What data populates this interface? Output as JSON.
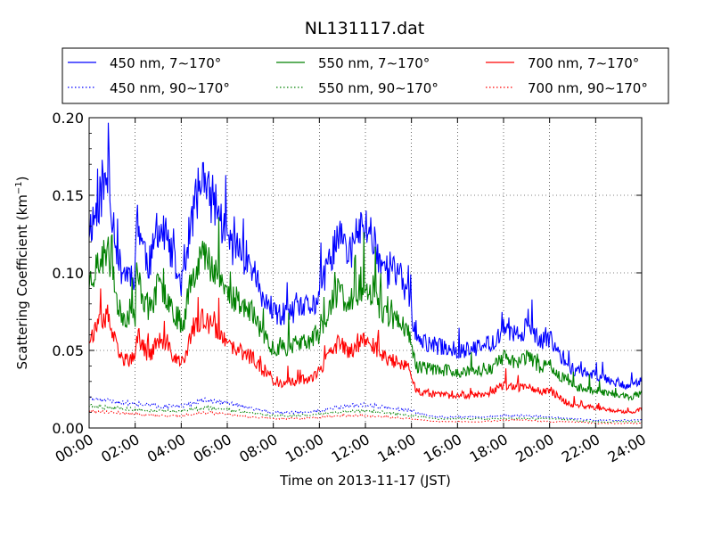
{
  "chart_data": {
    "type": "line",
    "title": "NL131117.dat",
    "xlabel": "Time on 2013-11-17 (JST)",
    "ylabel": "Scattering Coefficient (km",
    "ylabel_sup": "−1",
    "ylabel_end": ")",
    "xlim_hours": [
      0,
      24
    ],
    "ylim": [
      0,
      0.2
    ],
    "grid": true,
    "grid_style": "dotted",
    "legend_position": "top, above plot, 3 columns",
    "x_ticks": [
      "00:00",
      "02:00",
      "04:00",
      "06:00",
      "08:00",
      "10:00",
      "12:00",
      "14:00",
      "16:00",
      "18:00",
      "20:00",
      "22:00",
      "24:00"
    ],
    "y_ticks": [
      "0.00",
      "0.05",
      "0.10",
      "0.15",
      "0.20"
    ],
    "x_tick_hours": [
      0,
      2,
      4,
      6,
      8,
      10,
      12,
      14,
      16,
      18,
      20,
      22,
      24
    ],
    "y_tick_values": [
      0,
      0.05,
      0.1,
      0.15,
      0.2
    ],
    "series": [
      {
        "name": "450 nm, 7∼170°",
        "color": "#0000ff",
        "style": "solid",
        "noise": 0.22,
        "seed": 11,
        "x": [
          0,
          0.2,
          0.5,
          0.8,
          1.0,
          1.3,
          1.6,
          1.8,
          2.0,
          2.05,
          2.3,
          2.6,
          2.8,
          3.0,
          3.2,
          3.5,
          3.8,
          4.0,
          4.1,
          4.3,
          4.6,
          4.9,
          5.2,
          5.5,
          5.8,
          6.1,
          6.4,
          6.8,
          7.2,
          7.5,
          7.8,
          8.0,
          8.5,
          9.0,
          9.5,
          9.8,
          10.0,
          10.2,
          10.5,
          10.8,
          11.0,
          11.3,
          11.6,
          12.0,
          12.3,
          12.6,
          13.0,
          13.3,
          13.6,
          13.9,
          14.0,
          14.2,
          14.5,
          15.0,
          15.5,
          16.0,
          16.5,
          17.0,
          17.5,
          17.8,
          18.0,
          18.3,
          18.6,
          19.0,
          19.3,
          19.6,
          20.0,
          20.3,
          20.6,
          20.8,
          21.0,
          21.5,
          22.0,
          22.5,
          23.0,
          23.5,
          24.0
        ],
        "y": [
          0.13,
          0.135,
          0.15,
          0.16,
          0.14,
          0.105,
          0.1,
          0.1,
          0.1,
          0.14,
          0.12,
          0.105,
          0.115,
          0.13,
          0.125,
          0.115,
          0.1,
          0.095,
          0.095,
          0.12,
          0.145,
          0.16,
          0.15,
          0.145,
          0.13,
          0.12,
          0.115,
          0.11,
          0.1,
          0.085,
          0.075,
          0.073,
          0.073,
          0.075,
          0.078,
          0.08,
          0.085,
          0.095,
          0.11,
          0.125,
          0.12,
          0.11,
          0.125,
          0.13,
          0.125,
          0.11,
          0.1,
          0.1,
          0.095,
          0.085,
          0.075,
          0.057,
          0.055,
          0.053,
          0.052,
          0.05,
          0.05,
          0.052,
          0.055,
          0.06,
          0.065,
          0.06,
          0.06,
          0.065,
          0.06,
          0.055,
          0.058,
          0.05,
          0.045,
          0.04,
          0.038,
          0.036,
          0.034,
          0.032,
          0.029,
          0.027,
          0.03
        ]
      },
      {
        "name": "550 nm, 7∼170°",
        "color": "#008000",
        "style": "solid",
        "noise": 0.22,
        "seed": 23,
        "x": [
          0,
          0.2,
          0.5,
          0.8,
          1.0,
          1.3,
          1.6,
          1.8,
          2.0,
          2.05,
          2.3,
          2.6,
          2.8,
          3.0,
          3.2,
          3.5,
          3.8,
          4.0,
          4.1,
          4.3,
          4.6,
          4.9,
          5.2,
          5.5,
          5.8,
          6.1,
          6.4,
          6.8,
          7.2,
          7.5,
          7.8,
          8.0,
          8.5,
          9.0,
          9.5,
          9.8,
          10.0,
          10.2,
          10.5,
          10.8,
          11.0,
          11.3,
          11.6,
          12.0,
          12.3,
          12.6,
          13.0,
          13.3,
          13.6,
          13.9,
          14.0,
          14.2,
          14.5,
          15.0,
          15.5,
          16.0,
          16.5,
          17.0,
          17.5,
          17.8,
          18.0,
          18.3,
          18.6,
          19.0,
          19.3,
          19.6,
          20.0,
          20.3,
          20.6,
          20.8,
          21.0,
          21.5,
          22.0,
          22.5,
          23.0,
          23.5,
          24.0
        ],
        "y": [
          0.095,
          0.1,
          0.107,
          0.115,
          0.1,
          0.075,
          0.072,
          0.072,
          0.072,
          0.1,
          0.087,
          0.075,
          0.083,
          0.092,
          0.088,
          0.082,
          0.072,
          0.068,
          0.068,
          0.087,
          0.103,
          0.113,
          0.107,
          0.103,
          0.093,
          0.085,
          0.082,
          0.078,
          0.072,
          0.062,
          0.054,
          0.052,
          0.052,
          0.054,
          0.056,
          0.058,
          0.061,
          0.068,
          0.078,
          0.089,
          0.086,
          0.078,
          0.088,
          0.092,
          0.088,
          0.078,
          0.072,
          0.07,
          0.068,
          0.06,
          0.053,
          0.04,
          0.039,
          0.038,
          0.037,
          0.036,
          0.036,
          0.037,
          0.039,
          0.043,
          0.046,
          0.043,
          0.043,
          0.046,
          0.043,
          0.039,
          0.041,
          0.036,
          0.032,
          0.029,
          0.027,
          0.026,
          0.024,
          0.023,
          0.021,
          0.02,
          0.022
        ]
      },
      {
        "name": "700 nm, 7∼170°",
        "color": "#ff0000",
        "style": "solid",
        "noise": 0.22,
        "seed": 37,
        "x": [
          0,
          0.2,
          0.5,
          0.8,
          1.0,
          1.3,
          1.6,
          1.8,
          2.0,
          2.05,
          2.3,
          2.6,
          2.8,
          3.0,
          3.2,
          3.5,
          3.8,
          4.0,
          4.1,
          4.3,
          4.6,
          4.9,
          5.2,
          5.5,
          5.8,
          6.1,
          6.4,
          6.8,
          7.2,
          7.5,
          7.8,
          8.0,
          8.5,
          9.0,
          9.5,
          9.8,
          10.0,
          10.2,
          10.5,
          10.8,
          11.0,
          11.3,
          11.6,
          12.0,
          12.3,
          12.6,
          13.0,
          13.3,
          13.6,
          13.9,
          14.0,
          14.2,
          14.5,
          15.0,
          15.5,
          16.0,
          16.5,
          17.0,
          17.5,
          17.8,
          18.0,
          18.3,
          18.6,
          19.0,
          19.3,
          19.6,
          20.0,
          20.3,
          20.6,
          20.8,
          21.0,
          21.5,
          22.0,
          22.5,
          23.0,
          23.5,
          24.0
        ],
        "y": [
          0.058,
          0.062,
          0.067,
          0.072,
          0.062,
          0.046,
          0.044,
          0.044,
          0.044,
          0.062,
          0.054,
          0.046,
          0.051,
          0.057,
          0.054,
          0.05,
          0.044,
          0.042,
          0.042,
          0.054,
          0.064,
          0.07,
          0.066,
          0.064,
          0.057,
          0.052,
          0.05,
          0.048,
          0.044,
          0.038,
          0.033,
          0.03,
          0.029,
          0.03,
          0.032,
          0.034,
          0.036,
          0.041,
          0.048,
          0.055,
          0.053,
          0.048,
          0.054,
          0.057,
          0.054,
          0.048,
          0.044,
          0.043,
          0.042,
          0.037,
          0.033,
          0.024,
          0.023,
          0.022,
          0.021,
          0.021,
          0.021,
          0.022,
          0.023,
          0.026,
          0.028,
          0.026,
          0.026,
          0.028,
          0.026,
          0.023,
          0.025,
          0.021,
          0.018,
          0.016,
          0.015,
          0.014,
          0.013,
          0.012,
          0.011,
          0.01,
          0.012
        ]
      },
      {
        "name": "450 nm, 90∼170°",
        "color": "#0000ff",
        "style": "dotted",
        "noise": 0.18,
        "seed": 51,
        "x": [
          0,
          1,
          2,
          3,
          4,
          5,
          6,
          7,
          8,
          9,
          10,
          11,
          12,
          13,
          14,
          15,
          16,
          17,
          18,
          19,
          20,
          21,
          22,
          23,
          24
        ],
        "y": [
          0.019,
          0.017,
          0.016,
          0.014,
          0.014,
          0.018,
          0.016,
          0.013,
          0.01,
          0.01,
          0.011,
          0.014,
          0.015,
          0.013,
          0.011,
          0.007,
          0.007,
          0.007,
          0.008,
          0.008,
          0.007,
          0.006,
          0.005,
          0.005,
          0.005
        ]
      },
      {
        "name": "550 nm, 90∼170°",
        "color": "#008000",
        "style": "dotted",
        "noise": 0.18,
        "seed": 63,
        "x": [
          0,
          1,
          2,
          3,
          4,
          5,
          6,
          7,
          8,
          9,
          10,
          11,
          12,
          13,
          14,
          15,
          16,
          17,
          18,
          19,
          20,
          21,
          22,
          23,
          24
        ],
        "y": [
          0.014,
          0.013,
          0.012,
          0.011,
          0.011,
          0.013,
          0.012,
          0.01,
          0.008,
          0.008,
          0.009,
          0.011,
          0.011,
          0.01,
          0.008,
          0.006,
          0.006,
          0.006,
          0.006,
          0.006,
          0.006,
          0.005,
          0.004,
          0.004,
          0.004
        ]
      },
      {
        "name": "700 nm, 90∼170°",
        "color": "#ff0000",
        "style": "dotted",
        "noise": 0.18,
        "seed": 79,
        "x": [
          0,
          1,
          2,
          3,
          4,
          5,
          6,
          7,
          8,
          9,
          10,
          11,
          12,
          13,
          14,
          15,
          16,
          17,
          18,
          19,
          20,
          21,
          22,
          23,
          24
        ],
        "y": [
          0.011,
          0.01,
          0.009,
          0.008,
          0.008,
          0.01,
          0.009,
          0.007,
          0.006,
          0.006,
          0.007,
          0.008,
          0.008,
          0.007,
          0.006,
          0.004,
          0.004,
          0.004,
          0.005,
          0.005,
          0.004,
          0.004,
          0.003,
          0.003,
          0.003
        ]
      }
    ]
  }
}
